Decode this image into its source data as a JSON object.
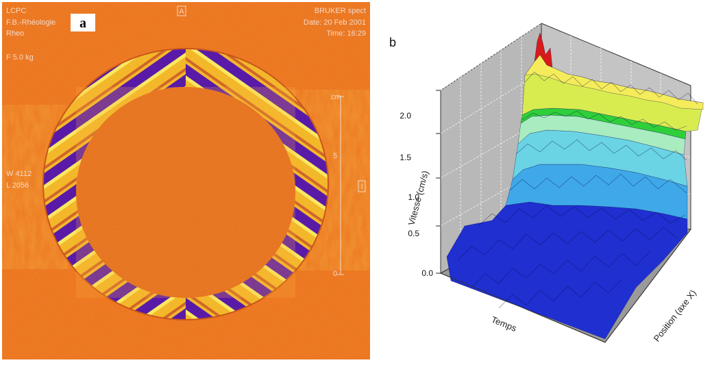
{
  "panel_a": {
    "label": "a",
    "top_left": [
      "LCPC",
      "F.B.-Rhéologie",
      "Rheo",
      "F 5.0 kg"
    ],
    "top_center": "A",
    "top_right": [
      "BRUKER spect",
      "Date: 20 Feb 2001",
      "Time: 16:29"
    ],
    "left_side": [
      "W 4112",
      "L 2056"
    ],
    "right_scale": [
      "cm",
      "5",
      "0"
    ],
    "right_marker": "I"
  },
  "panel_b": {
    "label": "b",
    "colors": [
      "#1a1aa0",
      "#1f3fd6",
      "#3fa8e8",
      "#66d8e0",
      "#9de8c8",
      "#3cd23c",
      "#c8e84a",
      "#f0ec50",
      "#d81a1a"
    ]
  },
  "chart_data": {
    "type": "surface",
    "ylabel": "Vitesse (cm/s)",
    "xlabel": "Temps",
    "zlabel": "Position (axe X)",
    "y_ticks": [
      "0.0",
      "0.5",
      "1.0",
      "1.5",
      "2.0"
    ],
    "ylim": [
      0,
      2.0
    ],
    "description_levels": [
      0.0,
      0.5,
      1.0,
      1.5,
      2.0
    ]
  }
}
